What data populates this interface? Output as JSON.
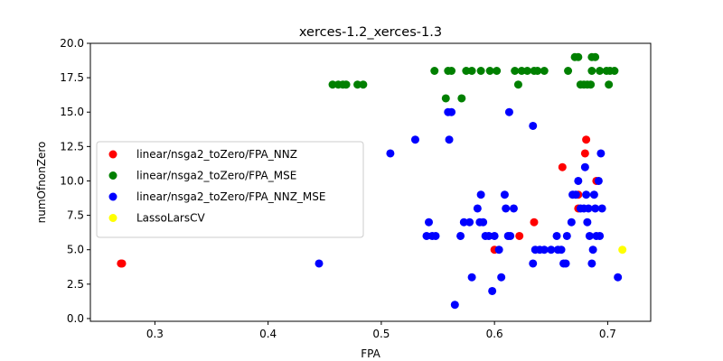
{
  "chart_data": {
    "type": "scatter",
    "title": "xerces-1.2_xerces-1.3",
    "xlabel": "FPA",
    "ylabel": "numOfnonZero",
    "xlim": [
      0.243,
      0.738
    ],
    "ylim": [
      -0.2,
      20.0
    ],
    "x_ticks": [
      "0.3",
      "0.4",
      "0.5",
      "0.6",
      "0.7"
    ],
    "x_tick_values": [
      0.3,
      0.4,
      0.5,
      0.6,
      0.7
    ],
    "y_ticks": [
      "0.0",
      "2.5",
      "5.0",
      "7.5",
      "10.0",
      "12.5",
      "15.0",
      "17.5",
      "20.0"
    ],
    "y_tick_values": [
      0.0,
      2.5,
      5.0,
      7.5,
      10.0,
      12.5,
      15.0,
      17.5,
      20.0
    ],
    "grid": false,
    "legend_position": "center-left",
    "series": [
      {
        "name": "linear/nsga2_toZero/FPA_NNZ",
        "color": "#ff0000",
        "points": [
          [
            0.27,
            4
          ],
          [
            0.271,
            4
          ],
          [
            0.6,
            5
          ],
          [
            0.622,
            6
          ],
          [
            0.635,
            7
          ],
          [
            0.66,
            11
          ],
          [
            0.674,
            9
          ],
          [
            0.674,
            8
          ],
          [
            0.68,
            12
          ],
          [
            0.681,
            13
          ],
          [
            0.69,
            10
          ]
        ]
      },
      {
        "name": "linear/nsga2_toZero/FPA_MSE",
        "color": "#008000",
        "points": [
          [
            0.457,
            17
          ],
          [
            0.462,
            17
          ],
          [
            0.466,
            17
          ],
          [
            0.469,
            17
          ],
          [
            0.479,
            17
          ],
          [
            0.484,
            17
          ],
          [
            0.547,
            18
          ],
          [
            0.557,
            16
          ],
          [
            0.559,
            18
          ],
          [
            0.562,
            18
          ],
          [
            0.571,
            16
          ],
          [
            0.575,
            18
          ],
          [
            0.58,
            18
          ],
          [
            0.588,
            18
          ],
          [
            0.596,
            18
          ],
          [
            0.602,
            18
          ],
          [
            0.618,
            18
          ],
          [
            0.621,
            17
          ],
          [
            0.624,
            18
          ],
          [
            0.629,
            18
          ],
          [
            0.635,
            18
          ],
          [
            0.638,
            18
          ],
          [
            0.644,
            18
          ],
          [
            0.665,
            18
          ],
          [
            0.671,
            19
          ],
          [
            0.674,
            19
          ],
          [
            0.676,
            17
          ],
          [
            0.679,
            17
          ],
          [
            0.682,
            17
          ],
          [
            0.685,
            17
          ],
          [
            0.686,
            19
          ],
          [
            0.689,
            19
          ],
          [
            0.686,
            18
          ],
          [
            0.693,
            18
          ],
          [
            0.699,
            18
          ],
          [
            0.701,
            17
          ],
          [
            0.702,
            18
          ],
          [
            0.706,
            18
          ]
        ]
      },
      {
        "name": "linear/nsga2_toZero/FPA_NNZ_MSE",
        "color": "#0000ff",
        "points": [
          [
            0.445,
            4
          ],
          [
            0.508,
            12
          ],
          [
            0.53,
            13
          ],
          [
            0.54,
            6
          ],
          [
            0.542,
            7
          ],
          [
            0.545,
            6
          ],
          [
            0.548,
            6
          ],
          [
            0.559,
            15
          ],
          [
            0.56,
            13
          ],
          [
            0.562,
            15
          ],
          [
            0.565,
            1
          ],
          [
            0.57,
            6
          ],
          [
            0.573,
            7
          ],
          [
            0.578,
            7
          ],
          [
            0.58,
            3
          ],
          [
            0.585,
            8
          ],
          [
            0.587,
            7
          ],
          [
            0.588,
            9
          ],
          [
            0.59,
            7
          ],
          [
            0.592,
            6
          ],
          [
            0.595,
            6
          ],
          [
            0.598,
            2
          ],
          [
            0.6,
            6
          ],
          [
            0.604,
            5
          ],
          [
            0.606,
            3
          ],
          [
            0.609,
            9
          ],
          [
            0.61,
            8
          ],
          [
            0.613,
            15
          ],
          [
            0.612,
            6
          ],
          [
            0.614,
            6
          ],
          [
            0.617,
            8
          ],
          [
            0.634,
            14
          ],
          [
            0.634,
            4
          ],
          [
            0.636,
            5
          ],
          [
            0.64,
            5
          ],
          [
            0.644,
            5
          ],
          [
            0.65,
            5
          ],
          [
            0.655,
            6
          ],
          [
            0.656,
            5
          ],
          [
            0.659,
            5
          ],
          [
            0.661,
            4
          ],
          [
            0.663,
            4
          ],
          [
            0.664,
            6
          ],
          [
            0.668,
            7
          ],
          [
            0.669,
            9
          ],
          [
            0.672,
            9
          ],
          [
            0.674,
            10
          ],
          [
            0.676,
            8
          ],
          [
            0.679,
            8
          ],
          [
            0.68,
            11
          ],
          [
            0.681,
            9
          ],
          [
            0.682,
            7
          ],
          [
            0.683,
            8
          ],
          [
            0.684,
            6
          ],
          [
            0.686,
            4
          ],
          [
            0.688,
            9
          ],
          [
            0.687,
            5
          ],
          [
            0.689,
            8
          ],
          [
            0.69,
            6
          ],
          [
            0.692,
            10
          ],
          [
            0.693,
            6
          ],
          [
            0.694,
            12
          ],
          [
            0.695,
            8
          ],
          [
            0.709,
            3
          ]
        ]
      },
      {
        "name": "LassoLarsCV",
        "color": "#ffff00",
        "points": [
          [
            0.713,
            5
          ]
        ]
      }
    ]
  }
}
